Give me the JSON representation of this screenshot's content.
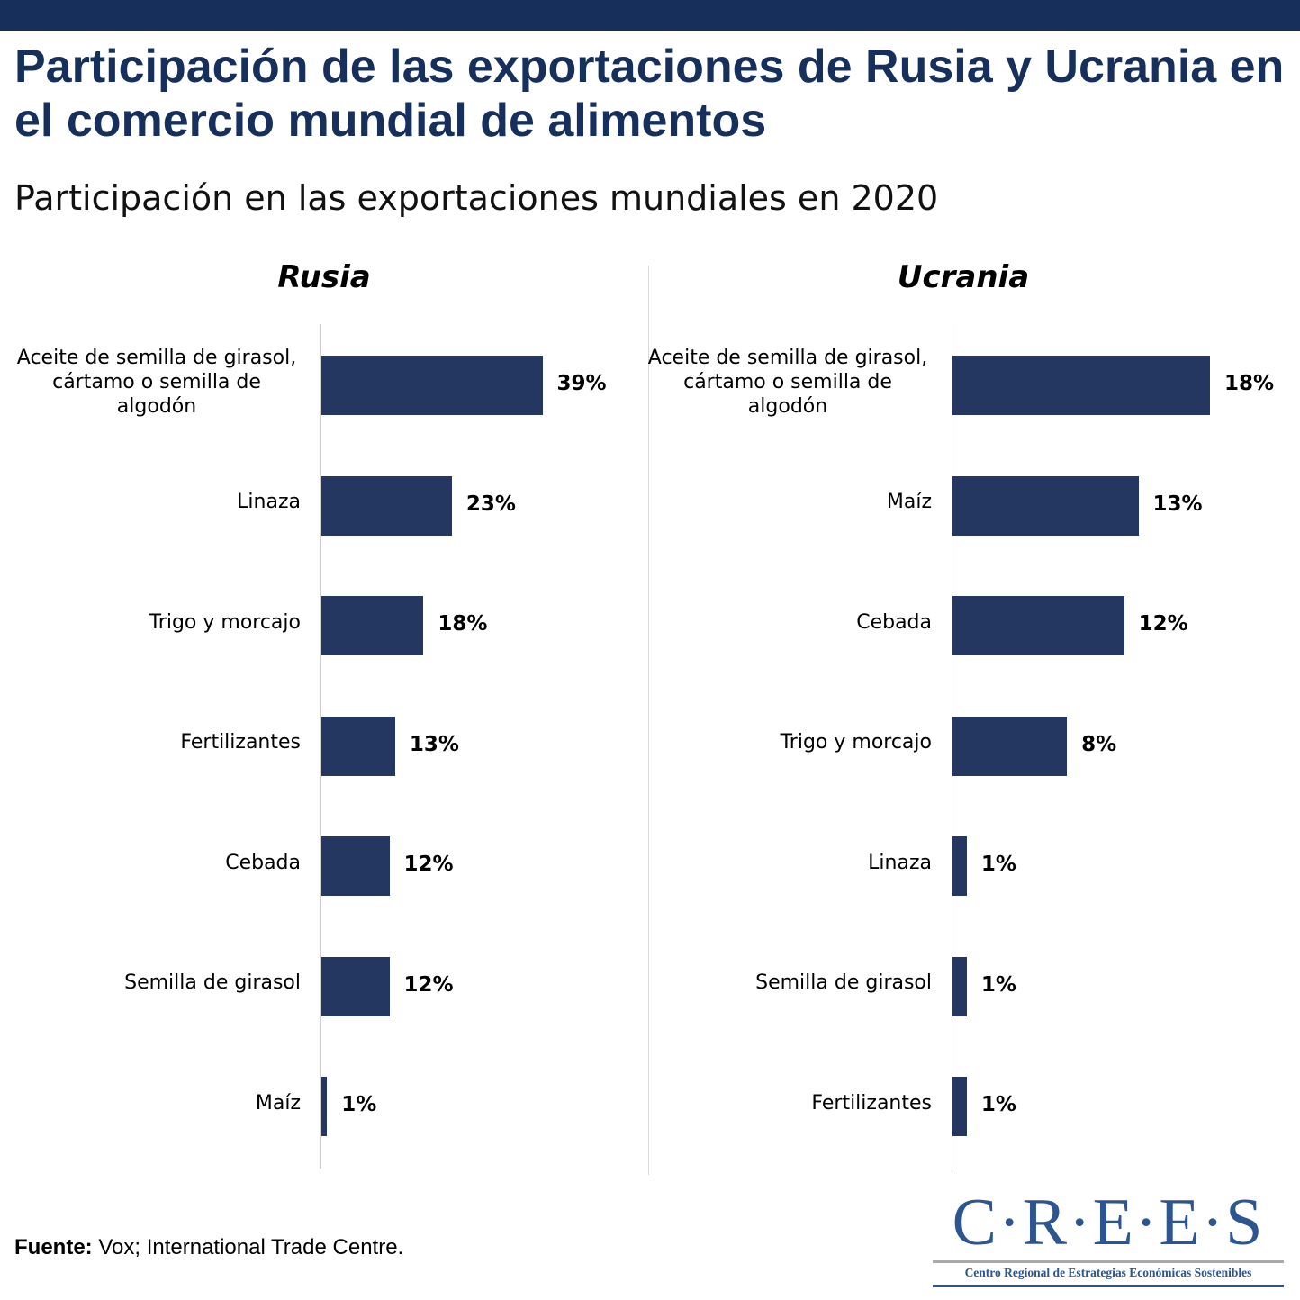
{
  "title": "Participación de las exportaciones de Rusia y Ucrania en el comercio mundial de alimentos",
  "subtitle": "Participación en las exportaciones mundiales en 2020",
  "source_label": "Fuente:",
  "source_text": " Vox; International Trade Centre.",
  "logo": {
    "main": "C·R·E·E·S",
    "sub": "Centro Regional de Estrategias Económicas Sostenibles"
  },
  "colors": {
    "bar": "#243760",
    "title": "#17305b"
  },
  "chart_data": [
    {
      "type": "bar",
      "orientation": "horizontal",
      "title": "Rusia",
      "categories": [
        "Aceite de semilla de girasol, cártamo o semilla de algodón",
        "Linaza",
        "Trigo y morcajo",
        "Fertilizantes",
        "Cebada",
        "Semilla de girasol",
        "Maíz"
      ],
      "values": [
        39,
        23,
        18,
        13,
        12,
        12,
        1
      ],
      "labels": [
        "39%",
        "23%",
        "18%",
        "13%",
        "12%",
        "12%",
        "1%"
      ],
      "unit": "%",
      "xlim": [
        0,
        54
      ]
    },
    {
      "type": "bar",
      "orientation": "horizontal",
      "title": "Ucrania",
      "categories": [
        "Aceite de semilla de girasol, cártamo o semilla de algodón",
        "Maíz",
        "Cebada",
        "Trigo y morcajo",
        "Linaza",
        "Semilla de girasol",
        "Fertilizantes"
      ],
      "values": [
        18,
        13,
        12,
        8,
        1,
        1,
        1
      ],
      "labels": [
        "18%",
        "13%",
        "12%",
        "8%",
        "1%",
        "1%",
        "1%"
      ],
      "unit": "%",
      "xlim": [
        0,
        21.4
      ]
    }
  ]
}
